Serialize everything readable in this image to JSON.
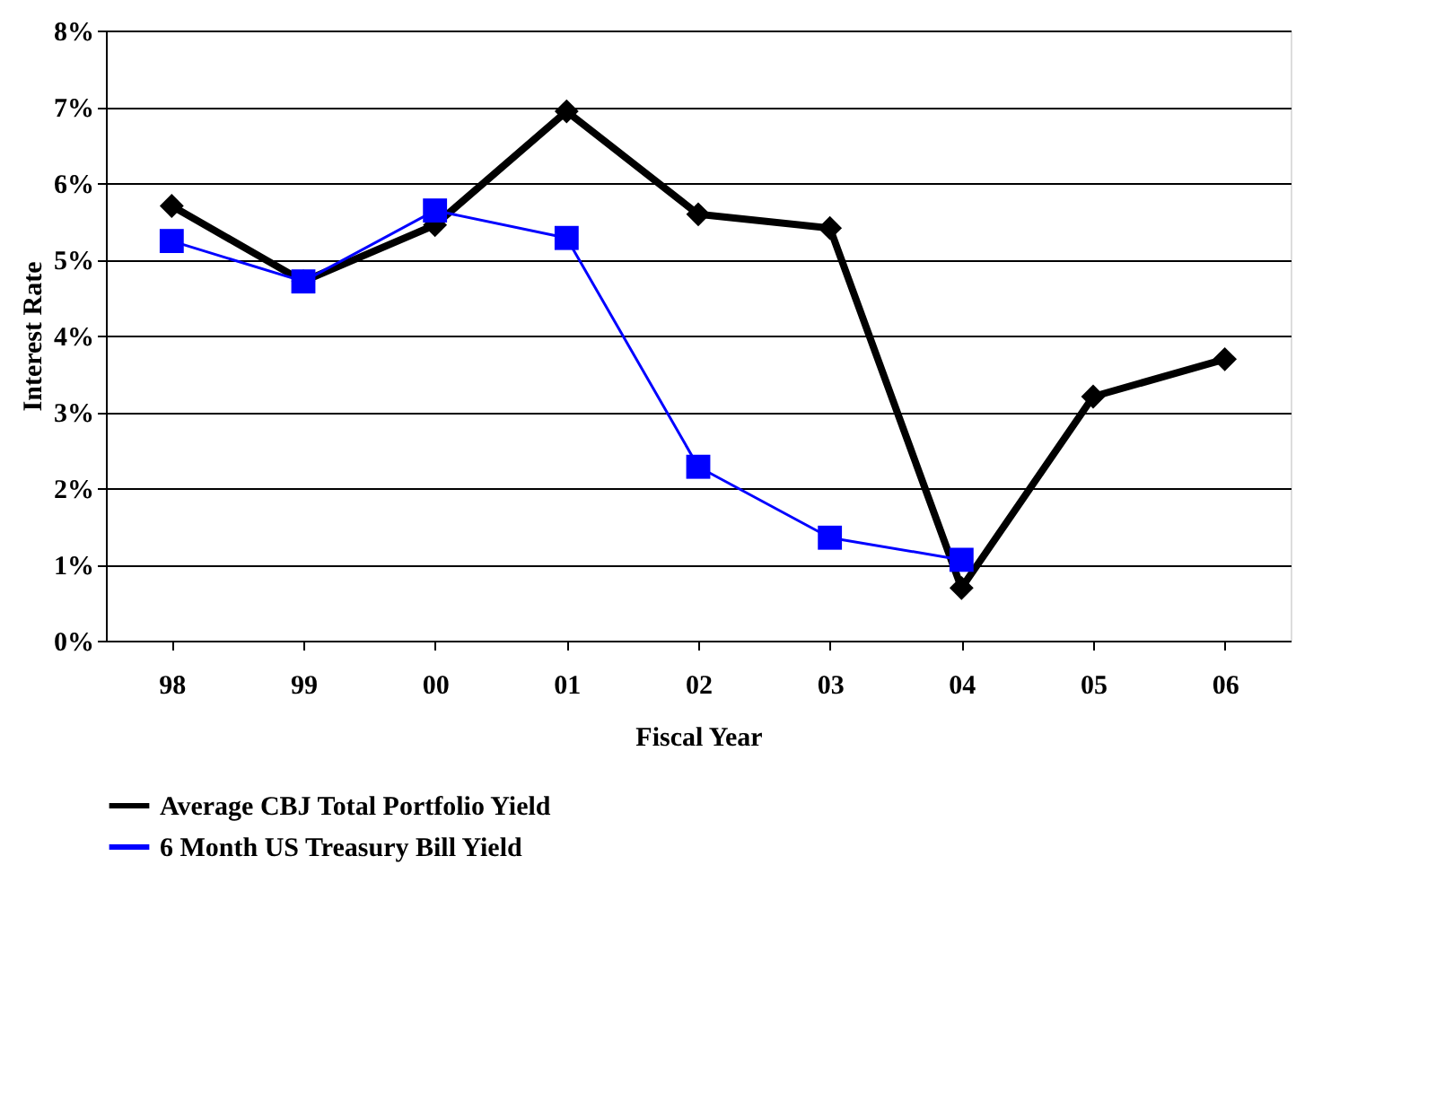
{
  "chart_data": {
    "type": "line",
    "xlabel": "Fiscal Year",
    "ylabel": "Interest Rate",
    "categories": [
      "98",
      "99",
      "00",
      "01",
      "02",
      "03",
      "04",
      "05",
      "06"
    ],
    "series": [
      {
        "name": "Average CBJ Total Portfolio Yield",
        "color": "#000000",
        "marker": "diamond",
        "values": [
          5.7,
          4.71,
          5.45,
          6.94,
          5.59,
          5.41,
          0.69,
          3.2,
          3.69
        ]
      },
      {
        "name": "6 Month US Treasury Bill Yield",
        "color": "#0000ff",
        "marker": "square",
        "values": [
          5.24,
          4.71,
          5.64,
          5.28,
          2.28,
          1.35,
          1.06,
          null,
          null
        ]
      }
    ],
    "ylim": [
      0,
      8
    ],
    "yticks": [
      {
        "value": 0,
        "label": "0%"
      },
      {
        "value": 1,
        "label": "1%"
      },
      {
        "value": 2,
        "label": "2%"
      },
      {
        "value": 3,
        "label": "3%"
      },
      {
        "value": 4,
        "label": "4%"
      },
      {
        "value": 5,
        "label": "5%"
      },
      {
        "value": 6,
        "label": "6%"
      },
      {
        "value": 7,
        "label": "7%"
      },
      {
        "value": 8,
        "label": "8%"
      }
    ],
    "grid": "y",
    "legend": "bottom",
    "line_style": "solid"
  }
}
